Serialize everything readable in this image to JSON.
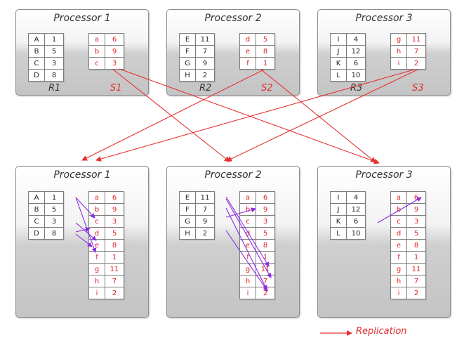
{
  "top_processors": [
    {
      "title": "Processor 1",
      "r_label": "R1",
      "s_label": "S1",
      "r": [
        [
          "A",
          "1"
        ],
        [
          "B",
          "5"
        ],
        [
          "C",
          "3"
        ],
        [
          "D",
          "8"
        ]
      ],
      "s": [
        [
          "a",
          "6"
        ],
        [
          "b",
          "9"
        ],
        [
          "c",
          "3"
        ]
      ]
    },
    {
      "title": "Processor 2",
      "r_label": "R2",
      "s_label": "S2",
      "r": [
        [
          "E",
          "11"
        ],
        [
          "F",
          "7"
        ],
        [
          "G",
          "9"
        ],
        [
          "H",
          "2"
        ]
      ],
      "s": [
        [
          "d",
          "5"
        ],
        [
          "e",
          "8"
        ],
        [
          "f",
          "1"
        ]
      ]
    },
    {
      "title": "Processor 3",
      "r_label": "R3",
      "s_label": "S3",
      "r": [
        [
          "I",
          "4"
        ],
        [
          "J",
          "12"
        ],
        [
          "K",
          "6"
        ],
        [
          "L",
          "10"
        ]
      ],
      "s": [
        [
          "g",
          "11"
        ],
        [
          "h",
          "7"
        ],
        [
          "i",
          "2"
        ]
      ]
    }
  ],
  "bottom_processors": [
    {
      "title": "Processor 1",
      "r": [
        [
          "A",
          "1"
        ],
        [
          "B",
          "5"
        ],
        [
          "C",
          "3"
        ],
        [
          "D",
          "8"
        ]
      ],
      "s": [
        [
          "a",
          "6"
        ],
        [
          "b",
          "9"
        ],
        [
          "c",
          "3"
        ],
        [
          "d",
          "5"
        ],
        [
          "e",
          "8"
        ],
        [
          "f",
          "1"
        ],
        [
          "g",
          "11"
        ],
        [
          "h",
          "7"
        ],
        [
          "i",
          "2"
        ]
      ]
    },
    {
      "title": "Processor 2",
      "r": [
        [
          "E",
          "11"
        ],
        [
          "F",
          "7"
        ],
        [
          "G",
          "9"
        ],
        [
          "H",
          "2"
        ]
      ],
      "s": [
        [
          "a",
          "6"
        ],
        [
          "b",
          "9"
        ],
        [
          "c",
          "3"
        ],
        [
          "d",
          "5"
        ],
        [
          "e",
          "8"
        ],
        [
          "f",
          "1"
        ],
        [
          "g",
          "11"
        ],
        [
          "h",
          "7"
        ],
        [
          "i",
          "2"
        ]
      ]
    },
    {
      "title": "Processor 3",
      "r": [
        [
          "I",
          "4"
        ],
        [
          "J",
          "12"
        ],
        [
          "K",
          "6"
        ],
        [
          "L",
          "10"
        ]
      ],
      "s": [
        [
          "a",
          "6"
        ],
        [
          "b",
          "9"
        ],
        [
          "c",
          "3"
        ],
        [
          "d",
          "5"
        ],
        [
          "e",
          "8"
        ],
        [
          "f",
          "1"
        ],
        [
          "g",
          "11"
        ],
        [
          "h",
          "7"
        ],
        [
          "i",
          "2"
        ]
      ]
    }
  ],
  "legend": {
    "label": "Replication"
  },
  "colors": {
    "replication": "#e83030",
    "match": "#8a2be2"
  }
}
